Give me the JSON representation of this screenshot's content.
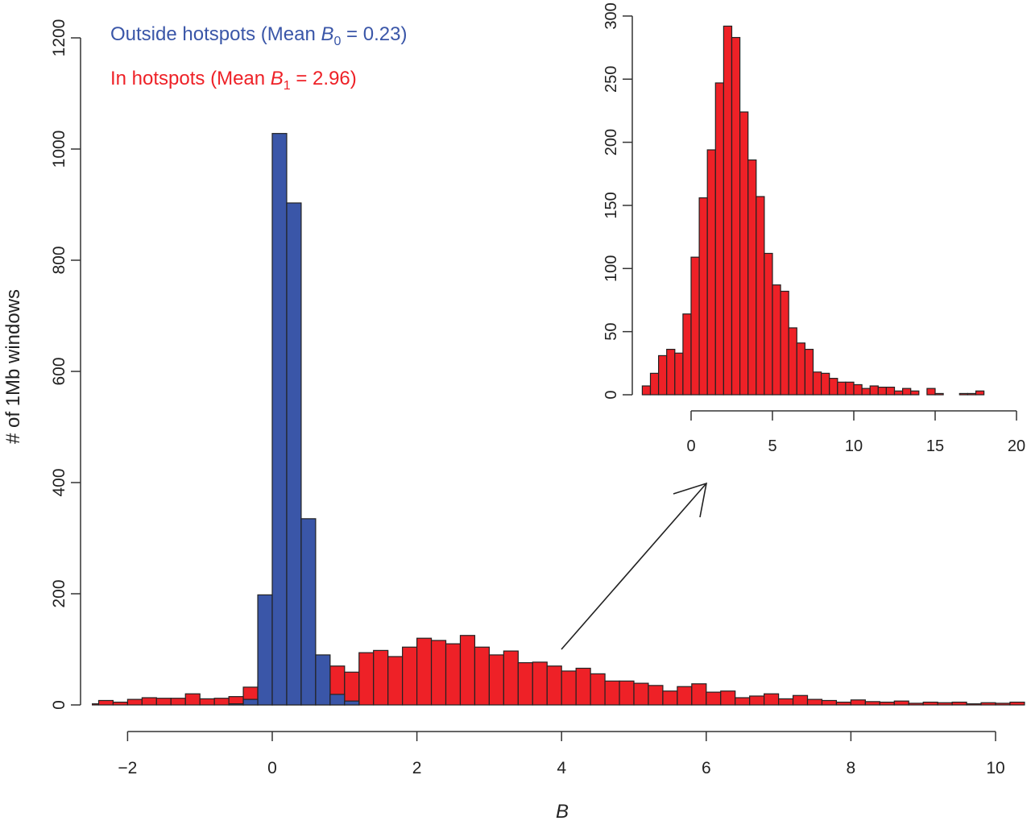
{
  "chart_data": [
    {
      "type": "bar",
      "subtype": "histogram-overlay",
      "xlabel": "B",
      "ylabel": "# of 1Mb windows",
      "xlim": [
        -2.5,
        10.5
      ],
      "ylim": [
        0,
        1200
      ],
      "x_ticks": [
        "−2",
        "0",
        "2",
        "4",
        "6",
        "8",
        "10"
      ],
      "x_tick_values": [
        -2,
        0,
        2,
        4,
        6,
        8,
        10
      ],
      "y_ticks": [
        "0",
        "200",
        "400",
        "600",
        "800",
        "1000",
        "1200"
      ],
      "y_tick_values": [
        0,
        200,
        400,
        600,
        800,
        1000,
        1200
      ],
      "bin_width": 0.2,
      "grid": false,
      "legend_position": "top-left",
      "series": [
        {
          "name": "In hotspots (Mean B1 = 2.96)",
          "legend": {
            "prefix": "In hotspots (Mean ",
            "var": "B",
            "sub": "1",
            "suffix": " = 2.96)"
          },
          "color": "#ee2127",
          "bin_start": -2.6,
          "values": [
            2,
            8,
            5,
            10,
            13,
            12,
            12,
            20,
            11,
            12,
            15,
            32,
            40,
            50,
            55,
            60,
            65,
            70,
            59,
            94,
            98,
            87,
            104,
            120,
            116,
            110,
            125,
            104,
            90,
            97,
            76,
            77,
            70,
            61,
            66,
            56,
            43,
            43,
            39,
            35,
            25,
            33,
            38,
            23,
            25,
            13,
            16,
            20,
            11,
            17,
            10,
            8,
            5,
            9,
            6,
            5,
            7,
            3,
            5,
            4,
            5,
            2,
            4,
            3,
            5
          ]
        },
        {
          "name": "Outside hotspots (Mean B0 = 0.23)",
          "legend": {
            "prefix": "Outside hotspots (Mean ",
            "var": "B",
            "sub": "0",
            "suffix": " = 0.23)"
          },
          "color": "#3a56a8",
          "bin_start": -0.6,
          "values": [
            2,
            10,
            198,
            1028,
            903,
            335,
            90,
            19,
            7
          ]
        }
      ]
    },
    {
      "type": "bar",
      "subtype": "histogram-inset",
      "xlim": [
        -3,
        20
      ],
      "ylim": [
        0,
        300
      ],
      "x_ticks": [
        "0",
        "5",
        "10",
        "15",
        "20"
      ],
      "x_tick_values": [
        0,
        5,
        10,
        15,
        20
      ],
      "y_ticks": [
        "0",
        "50",
        "100",
        "150",
        "200",
        "250",
        "300"
      ],
      "y_tick_values": [
        0,
        50,
        100,
        150,
        200,
        250,
        300
      ],
      "bin_width": 0.5,
      "series": [
        {
          "color": "#ee2127",
          "bin_start": -3.0,
          "values": [
            7,
            17,
            31,
            36,
            33,
            64,
            109,
            156,
            194,
            247,
            292,
            283,
            224,
            186,
            157,
            112,
            87,
            82,
            53,
            41,
            36,
            18,
            17,
            13,
            10,
            10,
            8,
            5,
            7,
            6,
            6,
            3,
            5,
            3,
            0,
            5,
            1,
            0,
            0,
            1,
            1,
            3
          ]
        }
      ]
    }
  ]
}
